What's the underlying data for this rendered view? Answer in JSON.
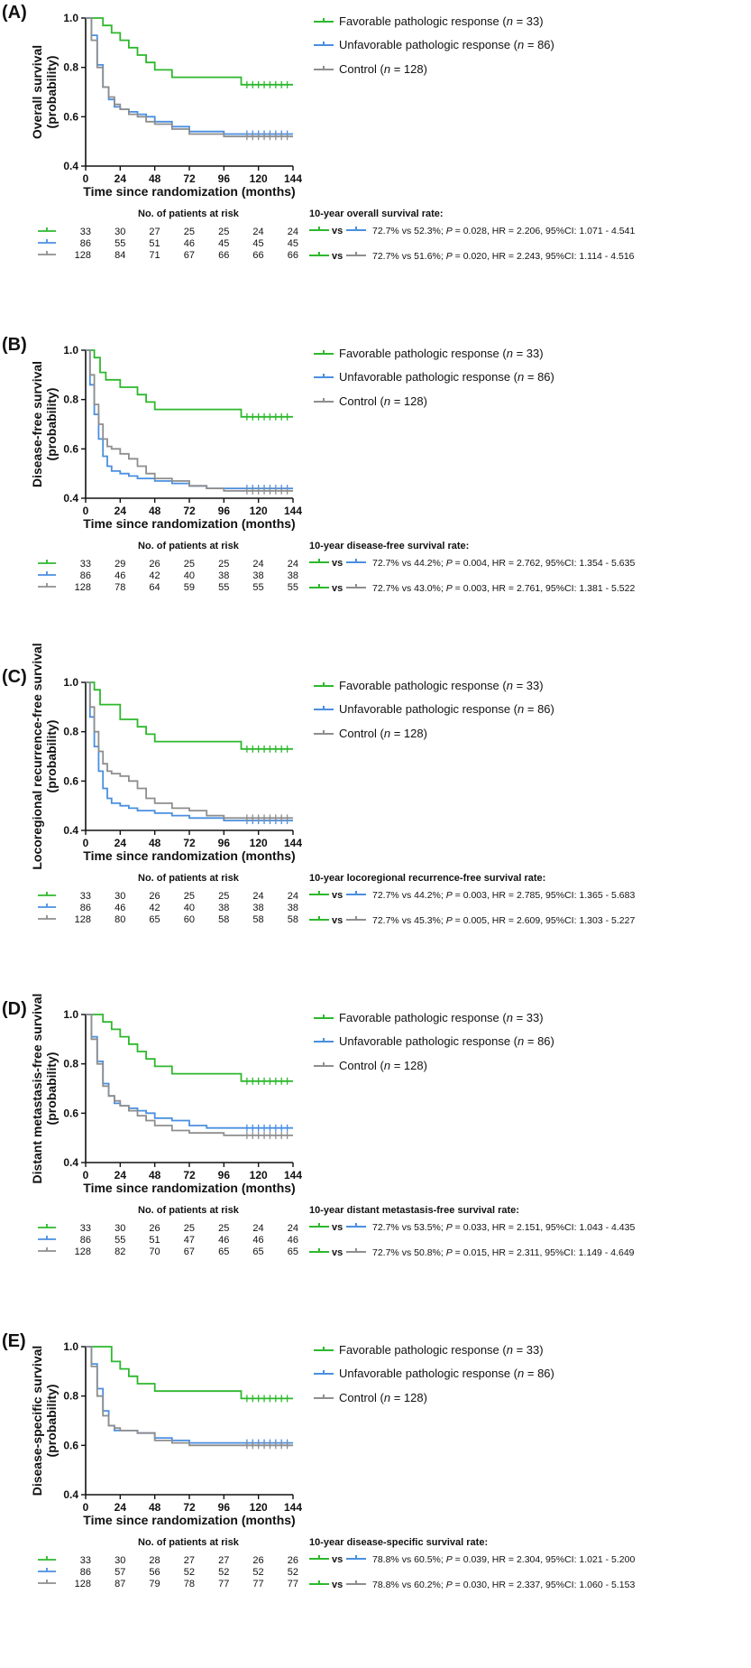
{
  "colors": {
    "favorable": "#2db82d",
    "unfavorable": "#4a8fe0",
    "control": "#8e8e8e"
  },
  "legend": {
    "favorable": {
      "label": "Favorable pathologic response (",
      "n_label": "n",
      "n_suffix": " = 33)"
    },
    "unfavorable": {
      "label": "Unfavorable pathologic response (",
      "n_label": "n",
      "n_suffix": " = 86)"
    },
    "control": {
      "label": "Control (",
      "n_label": "n",
      "n_suffix": " = 128)"
    }
  },
  "risk_header": "No. of patients at risk",
  "vs_label": "vs",
  "chart_data": [
    {
      "panel": "(A)",
      "type": "line",
      "ylabel_lines": [
        "Overall survival",
        "(probability)"
      ],
      "xlabel": "Time since randomization (months)",
      "xticks": [
        0,
        24,
        48,
        72,
        96,
        120,
        144
      ],
      "xtick_labels": [
        "0",
        "24",
        "48",
        "72",
        "96",
        "120",
        "144"
      ],
      "yticks": [
        0.4,
        0.6,
        0.8,
        1.0
      ],
      "ytick_labels": [
        "0.4",
        "0.6",
        "0.8",
        "1.0"
      ],
      "xlim": [
        0,
        144
      ],
      "ylim": [
        0.4,
        1.0
      ],
      "series": [
        {
          "name": "Favorable pathologic response",
          "color_key": "favorable",
          "x": [
            0,
            9,
            12,
            18,
            24,
            30,
            36,
            42,
            48,
            54,
            60,
            80,
            108,
            144
          ],
          "y": [
            1.0,
            1.0,
            0.97,
            0.94,
            0.91,
            0.88,
            0.85,
            0.82,
            0.79,
            0.79,
            0.76,
            0.76,
            0.73,
            0.73
          ]
        },
        {
          "name": "Unfavorable pathologic response",
          "color_key": "unfavorable",
          "x": [
            0,
            4,
            8,
            12,
            16,
            20,
            24,
            30,
            36,
            42,
            48,
            60,
            72,
            84,
            96,
            110,
            144
          ],
          "y": [
            1.0,
            0.93,
            0.81,
            0.72,
            0.67,
            0.64,
            0.63,
            0.62,
            0.61,
            0.6,
            0.58,
            0.56,
            0.54,
            0.54,
            0.53,
            0.53,
            0.53
          ]
        },
        {
          "name": "Control",
          "color_key": "control",
          "x": [
            0,
            4,
            8,
            12,
            16,
            20,
            24,
            30,
            36,
            42,
            48,
            60,
            72,
            84,
            96,
            110,
            144
          ],
          "y": [
            1.0,
            0.91,
            0.8,
            0.72,
            0.68,
            0.65,
            0.63,
            0.61,
            0.6,
            0.58,
            0.57,
            0.55,
            0.53,
            0.53,
            0.52,
            0.52,
            0.52
          ]
        }
      ],
      "risk_table": {
        "favorable": [
          "33",
          "30",
          "27",
          "25",
          "25",
          "24",
          "24"
        ],
        "unfavorable": [
          "86",
          "55",
          "51",
          "46",
          "45",
          "45",
          "45"
        ],
        "control": [
          "128",
          "84",
          "71",
          "67",
          "66",
          "66",
          "66"
        ]
      },
      "stats_title": "10-year overall survival rate:",
      "stats": [
        {
          "compare_key": "unfavorable",
          "pre": "72.7% vs 52.3%; ",
          "p_label": "P",
          "post": " = 0.028, HR = 2.206, 95%CI: 1.071 - 4.541"
        },
        {
          "compare_key": "control",
          "pre": "72.7% vs 51.6%; ",
          "p_label": "P",
          "post": " = 0.020, HR = 2.243, 95%CI: 1.114 - 4.516"
        }
      ]
    },
    {
      "panel": "(B)",
      "type": "line",
      "ylabel_lines": [
        "Disease-free survival",
        "(probability)"
      ],
      "xlabel": "Time since randomization (months)",
      "xticks": [
        0,
        24,
        48,
        72,
        96,
        120,
        144
      ],
      "xtick_labels": [
        "0",
        "24",
        "48",
        "72",
        "96",
        "120",
        "144"
      ],
      "yticks": [
        0.4,
        0.6,
        0.8,
        1.0
      ],
      "ytick_labels": [
        "0.4",
        "0.6",
        "0.8",
        "1.0"
      ],
      "xlim": [
        0,
        144
      ],
      "ylim": [
        0.4,
        1.0
      ],
      "series": [
        {
          "name": "Favorable pathologic response",
          "color_key": "favorable",
          "x": [
            0,
            6,
            10,
            14,
            24,
            36,
            42,
            48,
            72,
            108,
            144
          ],
          "y": [
            1.0,
            0.97,
            0.91,
            0.88,
            0.85,
            0.82,
            0.79,
            0.76,
            0.76,
            0.73,
            0.73
          ]
        },
        {
          "name": "Unfavorable pathologic response",
          "color_key": "unfavorable",
          "x": [
            0,
            3,
            6,
            9,
            12,
            15,
            18,
            24,
            30,
            36,
            48,
            60,
            72,
            84,
            96,
            144
          ],
          "y": [
            1.0,
            0.86,
            0.74,
            0.64,
            0.57,
            0.53,
            0.51,
            0.5,
            0.49,
            0.48,
            0.47,
            0.46,
            0.45,
            0.44,
            0.44,
            0.44
          ]
        },
        {
          "name": "Control",
          "color_key": "control",
          "x": [
            0,
            3,
            6,
            9,
            12,
            15,
            18,
            24,
            30,
            36,
            42,
            48,
            60,
            72,
            84,
            96,
            144
          ],
          "y": [
            1.0,
            0.9,
            0.78,
            0.7,
            0.64,
            0.61,
            0.6,
            0.58,
            0.56,
            0.53,
            0.5,
            0.48,
            0.47,
            0.45,
            0.44,
            0.43,
            0.43
          ]
        }
      ],
      "risk_table": {
        "favorable": [
          "33",
          "29",
          "26",
          "25",
          "25",
          "24",
          "24"
        ],
        "unfavorable": [
          "86",
          "46",
          "42",
          "40",
          "38",
          "38",
          "38"
        ],
        "control": [
          "128",
          "78",
          "64",
          "59",
          "55",
          "55",
          "55"
        ]
      },
      "stats_title": "10-year disease-free survival rate:",
      "stats": [
        {
          "compare_key": "unfavorable",
          "pre": "72.7% vs 44.2%; ",
          "p_label": "P",
          "post": " = 0.004, HR = 2.762, 95%CI: 1.354 - 5.635"
        },
        {
          "compare_key": "control",
          "pre": "72.7% vs 43.0%; ",
          "p_label": "P",
          "post": " = 0.003, HR = 2.761, 95%CI: 1.381 - 5.522"
        }
      ]
    },
    {
      "panel": "(C)",
      "type": "line",
      "ylabel_lines": [
        "Locoregional recurrence-free survival",
        "(probability)"
      ],
      "xlabel": "Time since randomization (months)",
      "xticks": [
        0,
        24,
        48,
        72,
        96,
        120,
        144
      ],
      "xtick_labels": [
        "0",
        "24",
        "48",
        "72",
        "96",
        "120",
        "144"
      ],
      "yticks": [
        0.4,
        0.6,
        0.8,
        1.0
      ],
      "ytick_labels": [
        "0.4",
        "0.6",
        "0.8",
        "1.0"
      ],
      "xlim": [
        0,
        144
      ],
      "ylim": [
        0.4,
        1.0
      ],
      "series": [
        {
          "name": "Favorable pathologic response",
          "color_key": "favorable",
          "x": [
            0,
            6,
            10,
            14,
            24,
            36,
            42,
            48,
            72,
            108,
            144
          ],
          "y": [
            1.0,
            0.97,
            0.91,
            0.91,
            0.85,
            0.82,
            0.79,
            0.76,
            0.76,
            0.73,
            0.73
          ]
        },
        {
          "name": "Unfavorable pathologic response",
          "color_key": "unfavorable",
          "x": [
            0,
            3,
            6,
            9,
            12,
            15,
            18,
            24,
            30,
            36,
            48,
            60,
            72,
            96,
            144
          ],
          "y": [
            1.0,
            0.86,
            0.74,
            0.64,
            0.57,
            0.53,
            0.51,
            0.5,
            0.49,
            0.48,
            0.47,
            0.46,
            0.45,
            0.44,
            0.44
          ]
        },
        {
          "name": "Control",
          "color_key": "control",
          "x": [
            0,
            3,
            6,
            9,
            12,
            15,
            18,
            24,
            30,
            36,
            42,
            48,
            60,
            72,
            84,
            96,
            144
          ],
          "y": [
            1.0,
            0.9,
            0.8,
            0.72,
            0.67,
            0.64,
            0.63,
            0.62,
            0.6,
            0.57,
            0.53,
            0.51,
            0.49,
            0.48,
            0.46,
            0.45,
            0.45
          ]
        }
      ],
      "risk_table": {
        "favorable": [
          "33",
          "30",
          "26",
          "25",
          "25",
          "24",
          "24"
        ],
        "unfavorable": [
          "86",
          "46",
          "42",
          "40",
          "38",
          "38",
          "38"
        ],
        "control": [
          "128",
          "80",
          "65",
          "60",
          "58",
          "58",
          "58"
        ]
      },
      "stats_title": "10-year locoregional recurrence-free survival rate:",
      "stats": [
        {
          "compare_key": "unfavorable",
          "pre": "72.7% vs 44.2%; ",
          "p_label": "P",
          "post": " = 0.003, HR = 2.785, 95%CI: 1.365 - 5.683"
        },
        {
          "compare_key": "control",
          "pre": "72.7% vs 45.3%; ",
          "p_label": "P",
          "post": " = 0.005, HR = 2.609, 95%CI: 1.303 - 5.227"
        }
      ]
    },
    {
      "panel": "(D)",
      "type": "line",
      "ylabel_lines": [
        "Distant metastasis-free survival",
        "(probability)"
      ],
      "xlabel": "Time since randomization (months)",
      "xticks": [
        0,
        24,
        48,
        72,
        96,
        120,
        144
      ],
      "xtick_labels": [
        "0",
        "24",
        "48",
        "72",
        "96",
        "120",
        "144"
      ],
      "yticks": [
        0.4,
        0.6,
        0.8,
        1.0
      ],
      "ytick_labels": [
        "0.4",
        "0.6",
        "0.8",
        "1.0"
      ],
      "xlim": [
        0,
        144
      ],
      "ylim": [
        0.4,
        1.0
      ],
      "series": [
        {
          "name": "Favorable pathologic response",
          "color_key": "favorable",
          "x": [
            0,
            9,
            12,
            18,
            24,
            30,
            36,
            42,
            48,
            54,
            60,
            80,
            108,
            144
          ],
          "y": [
            1.0,
            1.0,
            0.97,
            0.94,
            0.91,
            0.88,
            0.85,
            0.82,
            0.79,
            0.79,
            0.76,
            0.76,
            0.73,
            0.73
          ]
        },
        {
          "name": "Unfavorable pathologic response",
          "color_key": "unfavorable",
          "x": [
            0,
            4,
            8,
            12,
            16,
            20,
            24,
            30,
            36,
            42,
            48,
            60,
            72,
            84,
            96,
            110,
            144
          ],
          "y": [
            1.0,
            0.91,
            0.81,
            0.72,
            0.67,
            0.64,
            0.63,
            0.62,
            0.61,
            0.6,
            0.58,
            0.57,
            0.55,
            0.54,
            0.54,
            0.54,
            0.54
          ]
        },
        {
          "name": "Control",
          "color_key": "control",
          "x": [
            0,
            4,
            8,
            12,
            16,
            20,
            24,
            30,
            36,
            42,
            48,
            60,
            72,
            84,
            96,
            110,
            144
          ],
          "y": [
            1.0,
            0.9,
            0.8,
            0.71,
            0.67,
            0.65,
            0.63,
            0.61,
            0.59,
            0.57,
            0.55,
            0.53,
            0.52,
            0.52,
            0.51,
            0.51,
            0.51
          ]
        }
      ],
      "risk_table": {
        "favorable": [
          "33",
          "30",
          "26",
          "25",
          "25",
          "24",
          "24"
        ],
        "unfavorable": [
          "86",
          "55",
          "51",
          "47",
          "46",
          "46",
          "46"
        ],
        "control": [
          "128",
          "82",
          "70",
          "67",
          "65",
          "65",
          "65"
        ]
      },
      "stats_title": "10-year distant metastasis-free survival rate:",
      "stats": [
        {
          "compare_key": "unfavorable",
          "pre": "72.7% vs 53.5%; ",
          "p_label": "P",
          "post": " = 0.033, HR = 2.151, 95%CI: 1.043 - 4.435"
        },
        {
          "compare_key": "control",
          "pre": "72.7% vs 50.8%; ",
          "p_label": "P",
          "post": " = 0.015, HR = 2.311, 95%CI: 1.149 - 4.649"
        }
      ]
    },
    {
      "panel": "(E)",
      "type": "line",
      "ylabel_lines": [
        "Disease-specific survival",
        "(probability)"
      ],
      "xlabel": "Time since randomization (months)",
      "xticks": [
        0,
        24,
        48,
        72,
        96,
        120,
        144
      ],
      "xtick_labels": [
        "0",
        "24",
        "48",
        "72",
        "96",
        "120",
        "144"
      ],
      "yticks": [
        0.4,
        0.6,
        0.8,
        1.0
      ],
      "ytick_labels": [
        "0.4",
        "0.6",
        "0.8",
        "1.0"
      ],
      "xlim": [
        0,
        144
      ],
      "ylim": [
        0.4,
        1.0
      ],
      "series": [
        {
          "name": "Favorable pathologic response",
          "color_key": "favorable",
          "x": [
            0,
            12,
            18,
            24,
            30,
            36,
            48,
            108,
            144
          ],
          "y": [
            1.0,
            1.0,
            0.94,
            0.91,
            0.88,
            0.85,
            0.82,
            0.79,
            0.79
          ]
        },
        {
          "name": "Unfavorable pathologic response",
          "color_key": "unfavorable",
          "x": [
            0,
            4,
            8,
            12,
            16,
            20,
            24,
            36,
            48,
            60,
            72,
            144
          ],
          "y": [
            1.0,
            0.93,
            0.83,
            0.74,
            0.68,
            0.66,
            0.66,
            0.65,
            0.63,
            0.62,
            0.61,
            0.61
          ]
        },
        {
          "name": "Control",
          "color_key": "control",
          "x": [
            0,
            4,
            8,
            12,
            16,
            20,
            24,
            36,
            48,
            60,
            72,
            144
          ],
          "y": [
            1.0,
            0.92,
            0.8,
            0.72,
            0.68,
            0.67,
            0.66,
            0.65,
            0.62,
            0.61,
            0.6,
            0.6
          ]
        }
      ],
      "risk_table": {
        "favorable": [
          "33",
          "30",
          "28",
          "27",
          "27",
          "26",
          "26"
        ],
        "unfavorable": [
          "86",
          "57",
          "56",
          "52",
          "52",
          "52",
          "52"
        ],
        "control": [
          "128",
          "87",
          "79",
          "78",
          "77",
          "77",
          "77"
        ]
      },
      "stats_title": "10-year disease-specific survival rate:",
      "stats": [
        {
          "compare_key": "unfavorable",
          "pre": "78.8% vs 60.5%; ",
          "p_label": "P",
          "post": " = 0.039, HR = 2.304, 95%CI: 1.021 - 5.200"
        },
        {
          "compare_key": "control",
          "pre": "78.8% vs 60.2%; ",
          "p_label": "P",
          "post": " = 0.030, HR = 2.337, 95%CI: 1.060 - 5.153"
        }
      ]
    }
  ]
}
